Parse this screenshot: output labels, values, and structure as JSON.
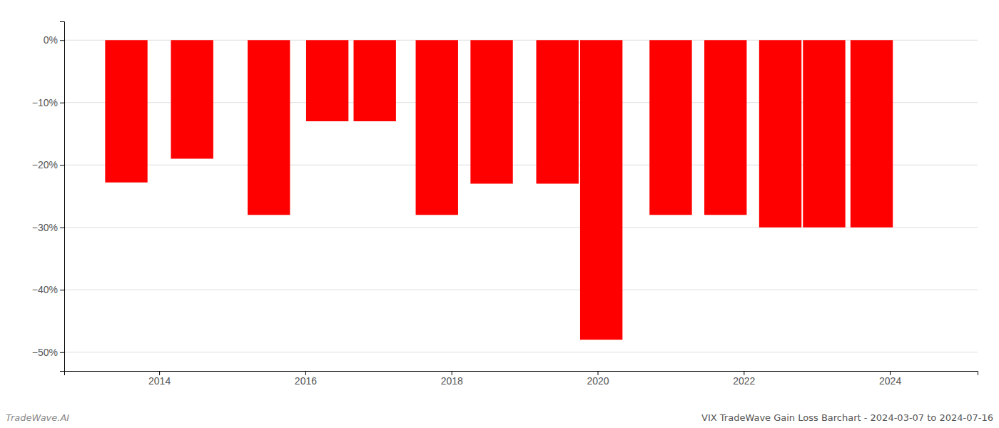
{
  "chart_data": {
    "type": "bar",
    "title": "VIX TradeWave Gain Loss Barchart - 2024-03-07 to 2024-07-16",
    "annotations": [
      "TradeWave.AI"
    ],
    "x": [
      2013.55,
      2014.45,
      2015.5,
      2016.3,
      2016.95,
      2017.8,
      2018.55,
      2019.45,
      2020.05,
      2021.0,
      2021.75,
      2022.5,
      2023.1,
      2023.75
    ],
    "values": [
      -0.228,
      -0.19,
      -0.28,
      -0.13,
      -0.13,
      -0.28,
      -0.23,
      -0.23,
      -0.48,
      -0.28,
      -0.28,
      -0.3,
      -0.3,
      -0.3
    ],
    "color": "#ff0000",
    "xlim": [
      2012.7,
      2025.2
    ],
    "xticks": [
      2014,
      2016,
      2018,
      2020,
      2022,
      2024
    ],
    "ylim": [
      -0.53,
      0.03
    ],
    "yticks": [
      {
        "value": 0.0,
        "label": "0%"
      },
      {
        "value": -0.1,
        "label": "−10%"
      },
      {
        "value": -0.2,
        "label": "−20%"
      },
      {
        "value": -0.3,
        "label": "−30%"
      },
      {
        "value": -0.4,
        "label": "−40%"
      },
      {
        "value": -0.5,
        "label": "−50%"
      }
    ],
    "grid": true
  }
}
